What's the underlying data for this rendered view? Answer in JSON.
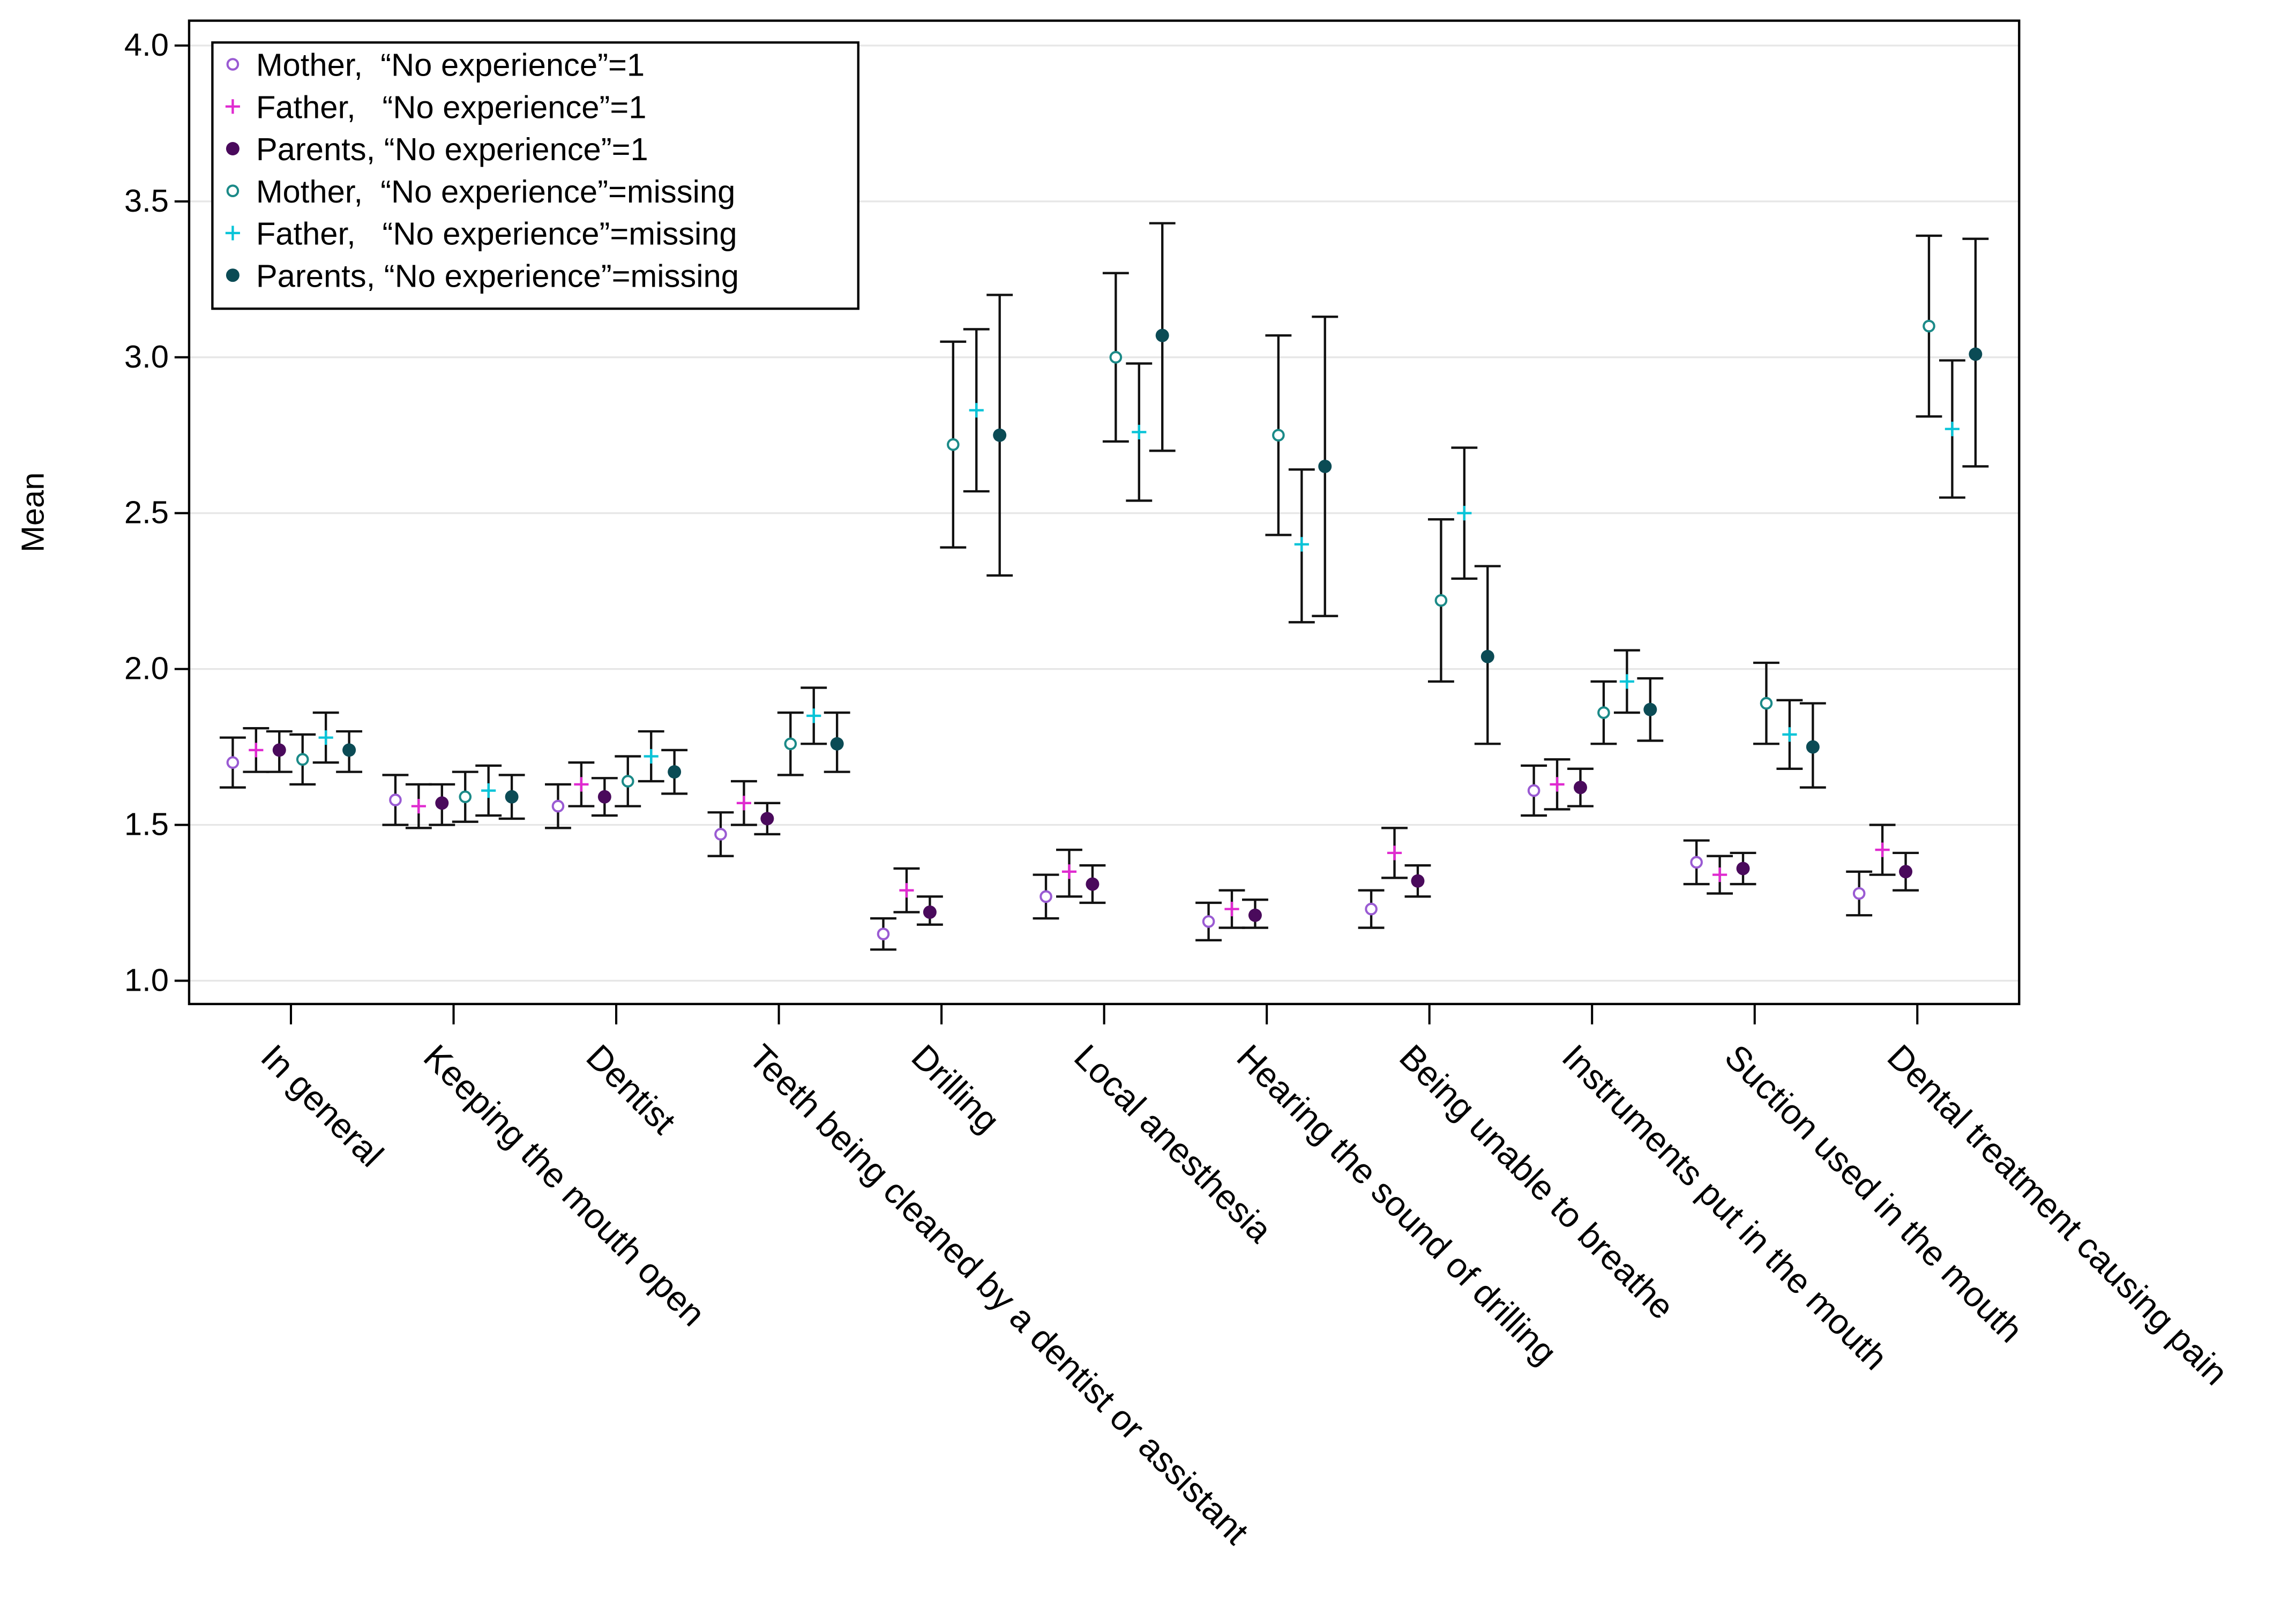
{
  "chart_data": {
    "type": "scatter",
    "subtype": "point-with-error-bars",
    "title": "",
    "xlabel": "",
    "ylabel": "Mean",
    "ylim": [
      0.92,
      4.08
    ],
    "yticks": [
      "1.0",
      "1.5",
      "2.0",
      "2.5",
      "3.0",
      "3.5",
      "4.0"
    ],
    "ytick_values": [
      1.0,
      1.5,
      2.0,
      2.5,
      3.0,
      3.5,
      4.0
    ],
    "grid": "horizontal",
    "legend_position": "top-left",
    "categories": [
      "In general",
      "Keeping the mouth open",
      "Dentist",
      "Teeth being cleaned by a dentist or assistant",
      "Drilling",
      "Local anesthesia",
      "Hearing the sound of drilling",
      "Being unable to breathe",
      "Instruments put in the mouth",
      "Suction used in the mouth",
      "Dental treatment causing pain"
    ],
    "series": [
      {
        "name": "Mother,  “No experience”=1",
        "marker": "open-circle",
        "color": "#9a5bd3",
        "values": [
          1.7,
          1.58,
          1.56,
          1.47,
          1.15,
          1.27,
          1.19,
          1.23,
          1.61,
          1.38,
          1.28
        ],
        "lower": [
          1.62,
          1.5,
          1.49,
          1.4,
          1.1,
          1.2,
          1.13,
          1.17,
          1.53,
          1.31,
          1.21
        ],
        "upper": [
          1.78,
          1.66,
          1.63,
          1.54,
          1.2,
          1.34,
          1.25,
          1.29,
          1.69,
          1.45,
          1.35
        ]
      },
      {
        "name": "Father,   “No experience”=1",
        "marker": "plus",
        "color": "#e02ad0",
        "values": [
          1.74,
          1.56,
          1.63,
          1.57,
          1.29,
          1.35,
          1.23,
          1.41,
          1.63,
          1.34,
          1.42
        ],
        "lower": [
          1.67,
          1.49,
          1.56,
          1.5,
          1.22,
          1.27,
          1.17,
          1.33,
          1.55,
          1.28,
          1.34
        ],
        "upper": [
          1.81,
          1.63,
          1.7,
          1.64,
          1.36,
          1.42,
          1.29,
          1.49,
          1.71,
          1.4,
          1.5
        ]
      },
      {
        "name": "Parents, “No experience”=1",
        "marker": "filled-circle",
        "color": "#4a0a5c",
        "values": [
          1.74,
          1.57,
          1.59,
          1.52,
          1.22,
          1.31,
          1.21,
          1.32,
          1.62,
          1.36,
          1.35
        ],
        "lower": [
          1.67,
          1.5,
          1.53,
          1.47,
          1.18,
          1.25,
          1.17,
          1.27,
          1.56,
          1.31,
          1.29
        ],
        "upper": [
          1.8,
          1.63,
          1.65,
          1.57,
          1.27,
          1.37,
          1.26,
          1.37,
          1.68,
          1.41,
          1.41
        ]
      },
      {
        "name": "Mother,  “No experience”=missing",
        "marker": "open-circle",
        "color": "#1b8a88",
        "values": [
          1.71,
          1.59,
          1.64,
          1.76,
          2.72,
          3.0,
          2.75,
          2.22,
          1.86,
          1.89,
          3.1
        ],
        "lower": [
          1.63,
          1.51,
          1.56,
          1.66,
          2.39,
          2.73,
          2.43,
          1.96,
          1.76,
          1.76,
          2.81
        ],
        "upper": [
          1.79,
          1.67,
          1.72,
          1.86,
          3.05,
          3.27,
          3.07,
          2.48,
          1.96,
          2.02,
          3.39
        ]
      },
      {
        "name": "Father,   “No experience”=missing",
        "marker": "plus",
        "color": "#08c4d8",
        "values": [
          1.78,
          1.61,
          1.72,
          1.85,
          2.83,
          2.76,
          2.4,
          2.5,
          1.96,
          1.79,
          2.77
        ],
        "lower": [
          1.7,
          1.53,
          1.64,
          1.76,
          2.57,
          2.54,
          2.15,
          2.29,
          1.86,
          1.68,
          2.55
        ],
        "upper": [
          1.86,
          1.69,
          1.8,
          1.94,
          3.09,
          2.98,
          2.64,
          2.71,
          2.06,
          1.9,
          2.99
        ]
      },
      {
        "name": "Parents, “No experience”=missing",
        "marker": "filled-circle",
        "color": "#0b4b55",
        "values": [
          1.74,
          1.59,
          1.67,
          1.76,
          2.75,
          3.07,
          2.65,
          2.04,
          1.87,
          1.75,
          3.01
        ],
        "lower": [
          1.67,
          1.52,
          1.6,
          1.67,
          2.3,
          2.7,
          2.17,
          1.76,
          1.77,
          1.62,
          2.65
        ],
        "upper": [
          1.8,
          1.66,
          1.74,
          1.86,
          3.2,
          3.43,
          3.13,
          2.33,
          1.97,
          1.89,
          3.38
        ]
      }
    ]
  }
}
